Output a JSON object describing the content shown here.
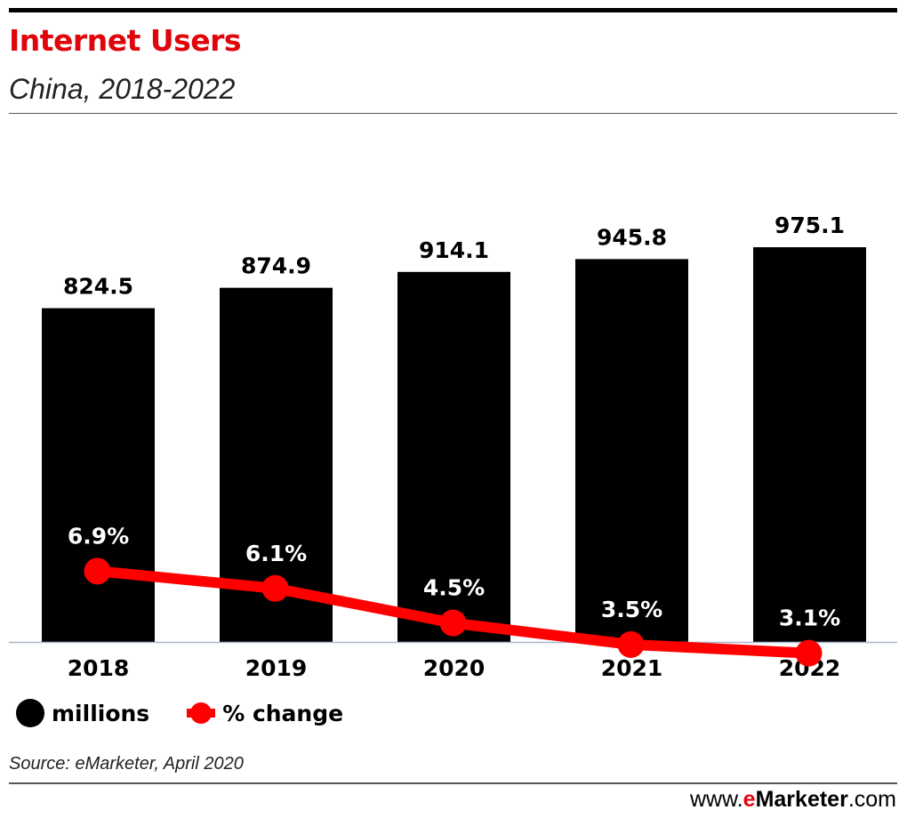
{
  "header": {
    "title": "Internet Users",
    "subtitle": "China, 2018-2022"
  },
  "chart_data": {
    "type": "bar",
    "categories": [
      "2018",
      "2019",
      "2020",
      "2021",
      "2022"
    ],
    "series": [
      {
        "name": "millions",
        "type": "bar",
        "values": [
          824.5,
          874.9,
          914.1,
          945.8,
          975.1
        ],
        "labels": [
          "824.5",
          "874.9",
          "914.1",
          "945.8",
          "975.1"
        ],
        "color": "#000000"
      },
      {
        "name": "% change",
        "type": "line",
        "values": [
          6.9,
          6.1,
          4.5,
          3.5,
          3.1
        ],
        "labels": [
          "6.9%",
          "6.1%",
          "4.5%",
          "3.5%",
          "3.1%"
        ],
        "color": "#ff0000"
      }
    ],
    "ylim": [
      0,
      1020
    ],
    "grid": false,
    "legend": "bottom-left"
  },
  "legend": {
    "millions_label": "millions",
    "change_label": "% change"
  },
  "footer": {
    "source": "Source: eMarketer, April 2020",
    "brand_prefix": "www.",
    "brand_e": "e",
    "brand_name": "Marketer",
    "brand_suffix": ".com"
  },
  "colors": {
    "title": "#e0040b",
    "bars": "#000000",
    "line": "#ff0000",
    "baseline": "#a9b7cc"
  }
}
